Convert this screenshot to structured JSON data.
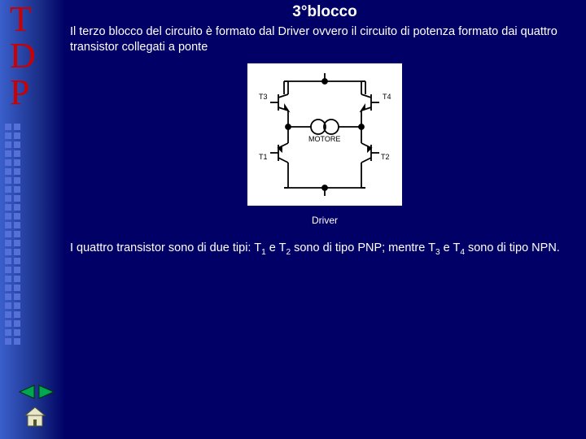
{
  "sidebar": {
    "letters": [
      "T",
      "D",
      "P"
    ],
    "letter_color": "#cc0000",
    "gradient_from": "#3a5fcc",
    "gradient_to": "#000066",
    "decor_square_color": "#5570d8",
    "decor_square_count": 50
  },
  "slide": {
    "title": "3°blocco",
    "paragraph1": "Il terzo blocco del circuito è formato dal Driver ovvero il circuito di potenza formato dai quattro transistor collegati a ponte",
    "caption": "Driver",
    "paragraph2_pre": "I quattro transistor sono di due tipi: T",
    "paragraph2_sub1": "1",
    "paragraph2_mid1": " e T",
    "paragraph2_sub2": "2",
    "paragraph2_mid2": " sono di tipo PNP; mentre T",
    "paragraph2_sub3": "3",
    "paragraph2_mid3": " e T",
    "paragraph2_sub4": "4",
    "paragraph2_end": " sono di tipo NPN."
  },
  "circuit": {
    "background": "#ffffff",
    "stroke": "#000000",
    "stroke_width": 1.8,
    "labels": {
      "top_left": "T3",
      "top_right": "T4",
      "bottom_left": "T1",
      "bottom_right": "T2",
      "motor": "MOTORE"
    },
    "label_fontsize": 9
  },
  "nav": {
    "arrow_fill": "#00a651",
    "arrow_stroke": "#003300",
    "home_fill": "#e8e8c8",
    "home_stroke": "#555533"
  },
  "colors": {
    "page_bg": "#000066",
    "text": "#ffffff"
  }
}
